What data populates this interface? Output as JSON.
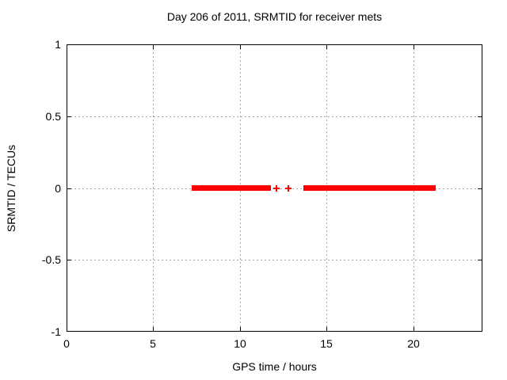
{
  "chart_data": {
    "type": "scatter",
    "title": "Day 206 of 2011, SRMTID for receiver mets",
    "xlabel": "GPS time / hours",
    "ylabel": "SRMTID / TECUs",
    "xlim": [
      0,
      24
    ],
    "ylim": [
      -1,
      1
    ],
    "xticks": [
      0,
      5,
      10,
      15,
      20
    ],
    "yticks": [
      -1,
      -0.5,
      0,
      0.5,
      1
    ],
    "grid": true,
    "legend": "none",
    "marker": "plus",
    "colors": {
      "series": "#ff0000",
      "grid": "#a6a6a6",
      "axis": "#000000",
      "text": "#000000"
    },
    "series": [
      {
        "name": "SRMTID",
        "y_value": 0,
        "segments_x": [
          [
            7.2,
            11.8
          ],
          [
            13.67,
            21.3
          ]
        ],
        "isolated_x": [
          12.1,
          12.8
        ]
      }
    ]
  }
}
